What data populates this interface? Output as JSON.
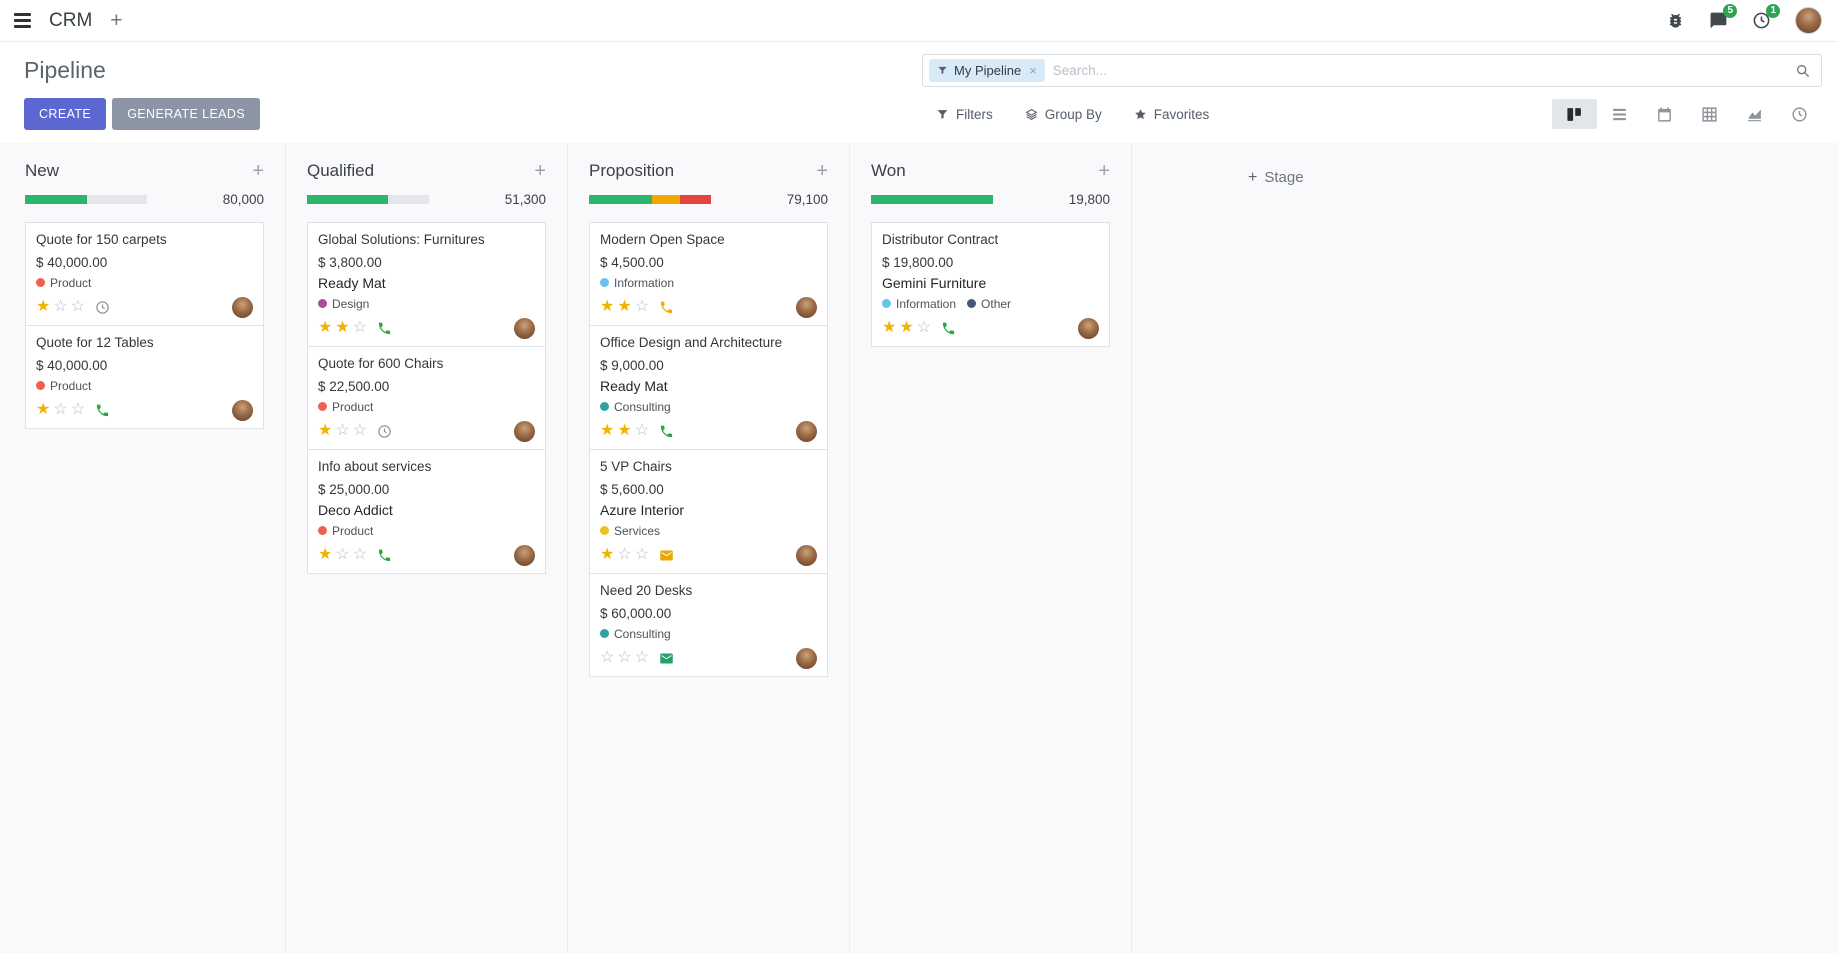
{
  "navbar": {
    "app_name": "CRM",
    "messages_badge": "5",
    "activities_badge": "1"
  },
  "control_panel": {
    "title": "Pipeline",
    "create_label": "CREATE",
    "generate_leads_label": "GENERATE LEADS",
    "search": {
      "facet_label": "My Pipeline",
      "facet_remove": "×",
      "placeholder": "Search..."
    },
    "filters_label": "Filters",
    "group_by_label": "Group By",
    "favorites_label": "Favorites"
  },
  "board": {
    "add_stage_label": "Stage",
    "columns": [
      {
        "name": "New",
        "total": "80,000",
        "progress": [
          {
            "color": "#2db46e",
            "pct": 51
          },
          {
            "color": "#e4e6ea",
            "pct": 49
          }
        ],
        "cards": [
          {
            "title": "Quote for 150 carpets",
            "amount": "$ 40,000.00",
            "tags": [
              {
                "label": "Product",
                "color": "#f06050"
              }
            ],
            "stars": 1,
            "activity": {
              "type": "clock",
              "color": "#8f969e"
            }
          },
          {
            "title": "Quote for 12 Tables",
            "amount": "$ 40,000.00",
            "tags": [
              {
                "label": "Product",
                "color": "#f06050"
              }
            ],
            "stars": 1,
            "activity": {
              "type": "phone",
              "color": "#28a745"
            }
          }
        ]
      },
      {
        "name": "Qualified",
        "total": "51,300",
        "progress": [
          {
            "color": "#2db46e",
            "pct": 66
          },
          {
            "color": "#e4e6ea",
            "pct": 34
          }
        ],
        "cards": [
          {
            "title": "Global Solutions: Furnitures",
            "amount": "$ 3,800.00",
            "partner": "Ready Mat",
            "tags": [
              {
                "label": "Design",
                "color": "#b0479b"
              }
            ],
            "stars": 2,
            "activity": {
              "type": "phone",
              "color": "#28a745"
            }
          },
          {
            "title": "Quote for 600 Chairs",
            "amount": "$ 22,500.00",
            "tags": [
              {
                "label": "Product",
                "color": "#f06050"
              }
            ],
            "stars": 1,
            "activity": {
              "type": "clock",
              "color": "#8f969e"
            }
          },
          {
            "title": "Info about services",
            "amount": "$ 25,000.00",
            "partner": "Deco Addict",
            "tags": [
              {
                "label": "Product",
                "color": "#f06050"
              }
            ],
            "stars": 1,
            "activity": {
              "type": "phone",
              "color": "#28a745"
            }
          }
        ]
      },
      {
        "name": "Proposition",
        "total": "79,100",
        "progress": [
          {
            "color": "#2db46e",
            "pct": 52
          },
          {
            "color": "#f0a800",
            "pct": 23
          },
          {
            "color": "#e5443d",
            "pct": 25
          }
        ],
        "cards": [
          {
            "title": "Modern Open Space",
            "amount": "$ 4,500.00",
            "tags": [
              {
                "label": "Information",
                "color": "#6cc1ed"
              }
            ],
            "stars": 2,
            "activity": {
              "type": "phone",
              "color": "#f0ad00"
            }
          },
          {
            "title": "Office Design and Architecture",
            "amount": "$ 9,000.00",
            "partner": "Ready Mat",
            "tags": [
              {
                "label": "Consulting",
                "color": "#31a2a0"
              }
            ],
            "stars": 2,
            "activity": {
              "type": "phone",
              "color": "#28a745"
            }
          },
          {
            "title": "5 VP Chairs",
            "amount": "$ 5,600.00",
            "partner": "Azure Interior",
            "tags": [
              {
                "label": "Services",
                "color": "#f0c020"
              }
            ],
            "stars": 1,
            "activity": {
              "type": "envelope",
              "color": "#eda500"
            }
          },
          {
            "title": "Need 20 Desks",
            "amount": "$ 60,000.00",
            "tags": [
              {
                "label": "Consulting",
                "color": "#31a2a0"
              }
            ],
            "stars": 0,
            "activity": {
              "type": "envelope",
              "color": "#23a267"
            }
          }
        ]
      },
      {
        "name": "Won",
        "total": "19,800",
        "progress": [
          {
            "color": "#2db46e",
            "pct": 100
          }
        ],
        "cards": [
          {
            "title": "Distributor Contract",
            "amount": "$ 19,800.00",
            "partner": "Gemini Furniture",
            "tags": [
              {
                "label": "Information",
                "color": "#6cc1ed"
              },
              {
                "label": "Other",
                "color": "#475577"
              }
            ],
            "stars": 2,
            "activity": {
              "type": "phone",
              "color": "#28a745"
            }
          }
        ]
      }
    ]
  }
}
